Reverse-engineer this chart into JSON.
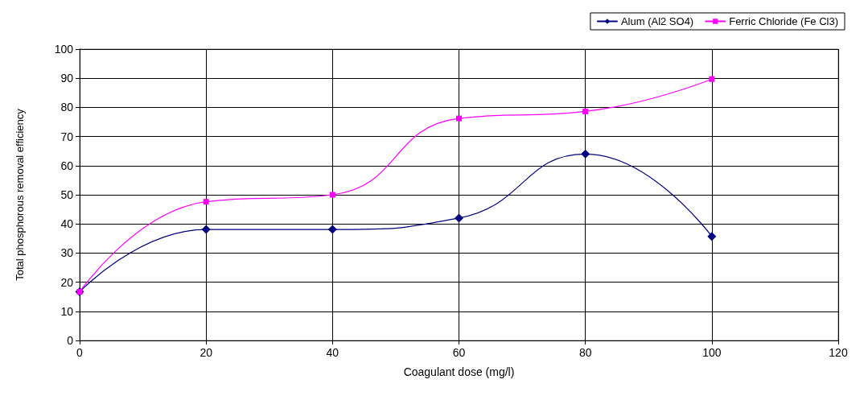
{
  "chart_data": {
    "type": "line",
    "xlabel": "Coagulant dose (mg/l)",
    "ylabel": "Total phosphorous removal efficiency",
    "x": [
      0,
      20,
      40,
      60,
      80,
      100
    ],
    "series": [
      {
        "name": "Alum (Al2 SO4)",
        "color": "#000080",
        "marker": "diamond",
        "values": [
          16.7,
          38.1,
          38.1,
          42,
          64,
          35.7
        ]
      },
      {
        "name": "Ferric Chloride (Fe Cl3)",
        "color": "#ff00ff",
        "marker": "square",
        "values": [
          16.7,
          47.6,
          50,
          76.2,
          78.6,
          89.7
        ]
      }
    ],
    "xlim": [
      0,
      120
    ],
    "xticks": [
      0,
      20,
      40,
      60,
      80,
      100,
      120
    ],
    "ylim": [
      0,
      100
    ],
    "yticks": [
      0,
      10,
      20,
      30,
      40,
      50,
      60,
      70,
      80,
      90,
      100
    ],
    "grid": true,
    "legend": "top right",
    "line_style": "solid"
  }
}
